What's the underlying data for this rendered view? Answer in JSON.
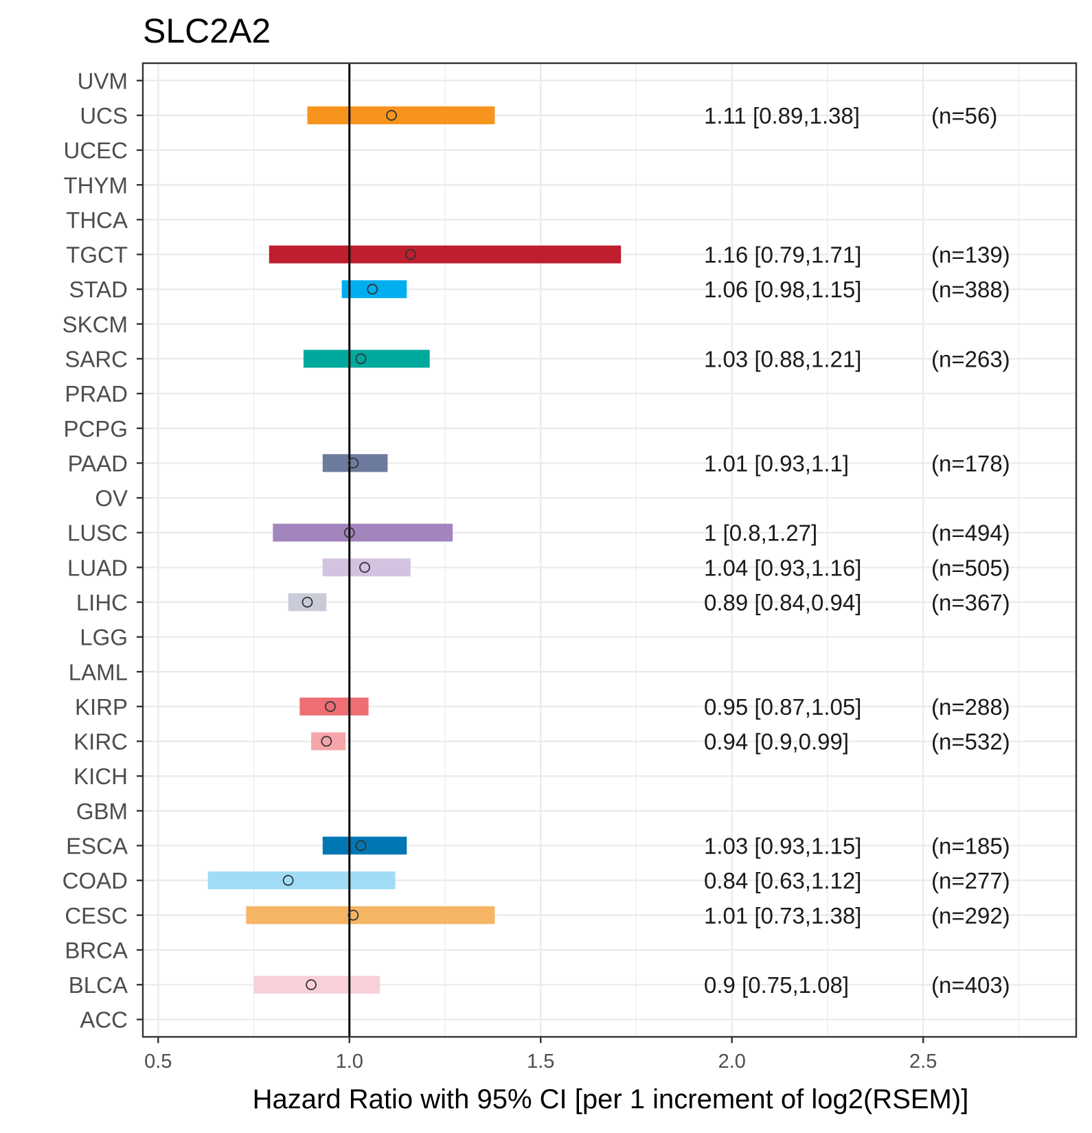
{
  "chart_data": {
    "type": "forest",
    "title": "SLC2A2",
    "xlabel": "Hazard Ratio with 95% CI [per 1 increment of log2(RSEM)]",
    "ylabel": "",
    "xlim": [
      0.46,
      2.9
    ],
    "xticks": [
      0.5,
      1.0,
      1.5,
      2.0,
      2.5
    ],
    "xtick_labels": [
      "0.5",
      "1.0",
      "1.5",
      "2.0",
      "2.5"
    ],
    "reference_line": 1.0,
    "grid": true,
    "categories": [
      "UVM",
      "UCS",
      "UCEC",
      "THYM",
      "THCA",
      "TGCT",
      "STAD",
      "SKCM",
      "SARC",
      "PRAD",
      "PCPG",
      "PAAD",
      "OV",
      "LUSC",
      "LUAD",
      "LIHC",
      "LGG",
      "LAML",
      "KIRP",
      "KIRC",
      "KICH",
      "GBM",
      "ESCA",
      "COAD",
      "CESC",
      "BRCA",
      "BLCA",
      "ACC"
    ],
    "series": [
      {
        "name": "UCS",
        "hr": 1.11,
        "low": 0.89,
        "high": 1.38,
        "label": "1.11 [0.89,1.38]",
        "n_label": "(n=56)",
        "color": "#F7941D"
      },
      {
        "name": "TGCT",
        "hr": 1.16,
        "low": 0.79,
        "high": 1.71,
        "label": "1.16 [0.79,1.71]",
        "n_label": "(n=139)",
        "color": "#BE1E2D"
      },
      {
        "name": "STAD",
        "hr": 1.06,
        "low": 0.98,
        "high": 1.15,
        "label": "1.06 [0.98,1.15]",
        "n_label": "(n=388)",
        "color": "#00AEEF"
      },
      {
        "name": "SARC",
        "hr": 1.03,
        "low": 0.88,
        "high": 1.21,
        "label": "1.03 [0.88,1.21]",
        "n_label": "(n=263)",
        "color": "#00A99D"
      },
      {
        "name": "PAAD",
        "hr": 1.01,
        "low": 0.93,
        "high": 1.1,
        "label": "1.01 [0.93,1.1]",
        "n_label": "(n=178)",
        "color": "#6D7B9E"
      },
      {
        "name": "LUSC",
        "hr": 1.0,
        "low": 0.8,
        "high": 1.27,
        "label": "1 [0.8,1.27]",
        "n_label": "(n=494)",
        "color": "#A385BE"
      },
      {
        "name": "LUAD",
        "hr": 1.04,
        "low": 0.93,
        "high": 1.16,
        "label": "1.04 [0.93,1.16]",
        "n_label": "(n=505)",
        "color": "#D4C2E1"
      },
      {
        "name": "LIHC",
        "hr": 0.89,
        "low": 0.84,
        "high": 0.94,
        "label": "0.89 [0.84,0.94]",
        "n_label": "(n=367)",
        "color": "#C9CBD8"
      },
      {
        "name": "KIRP",
        "hr": 0.95,
        "low": 0.87,
        "high": 1.05,
        "label": "0.95 [0.87,1.05]",
        "n_label": "(n=288)",
        "color": "#EE6E73"
      },
      {
        "name": "KIRC",
        "hr": 0.94,
        "low": 0.9,
        "high": 0.99,
        "label": "0.94 [0.9,0.99]",
        "n_label": "(n=532)",
        "color": "#F6A6AA"
      },
      {
        "name": "ESCA",
        "hr": 1.03,
        "low": 0.93,
        "high": 1.15,
        "label": "1.03 [0.93,1.15]",
        "n_label": "(n=185)",
        "color": "#0077B3"
      },
      {
        "name": "COAD",
        "hr": 0.84,
        "low": 0.63,
        "high": 1.12,
        "label": "0.84 [0.63,1.12]",
        "n_label": "(n=277)",
        "color": "#A1DCF7"
      },
      {
        "name": "CESC",
        "hr": 1.01,
        "low": 0.73,
        "high": 1.38,
        "label": "1.01 [0.73,1.38]",
        "n_label": "(n=292)",
        "color": "#F5B565"
      },
      {
        "name": "BLCA",
        "hr": 0.9,
        "low": 0.75,
        "high": 1.08,
        "label": "0.9 [0.75,1.08]",
        "n_label": "(n=403)",
        "color": "#F9D0D9"
      }
    ],
    "colors": {
      "panel_border": "#333333",
      "grid": "#EBEBEB",
      "reference_line": "#000000",
      "point_stroke": "#333333"
    }
  }
}
